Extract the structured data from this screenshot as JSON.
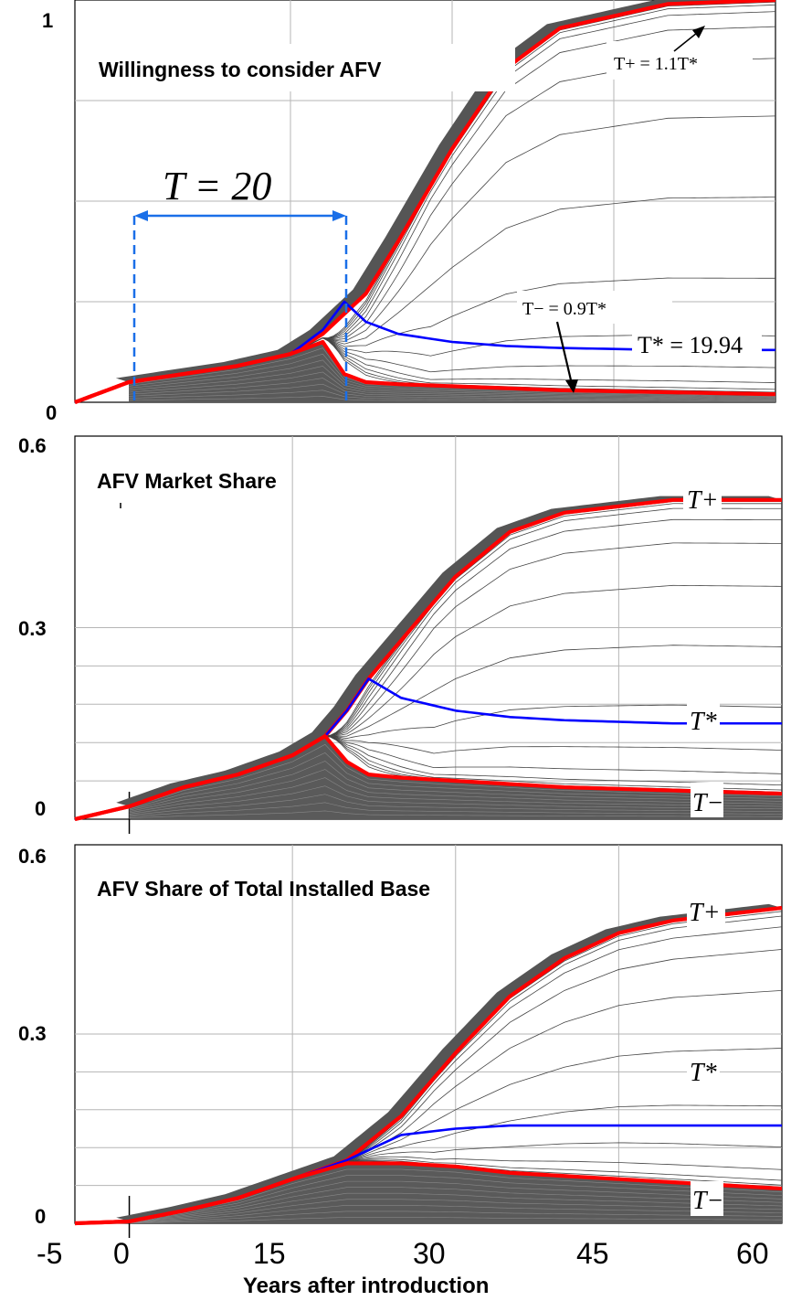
{
  "chart_data": [
    {
      "type": "line",
      "title": "Willingness to consider AFV",
      "xlim": [
        -5,
        60
      ],
      "ylim": [
        0,
        1
      ],
      "yticks": [
        "0",
        "1"
      ],
      "grid": true,
      "series": [
        {
          "name": "T+ = 1.1T*",
          "color": "#ff0000",
          "x": [
            -5,
            0,
            5,
            10,
            15,
            18,
            20,
            22,
            25,
            30,
            35,
            40,
            50,
            60
          ],
          "y": [
            0,
            0.05,
            0.07,
            0.09,
            0.12,
            0.17,
            0.22,
            0.27,
            0.4,
            0.63,
            0.83,
            0.93,
            0.99,
            1.0
          ]
        },
        {
          "name": "T* = 19.94",
          "color": "#0000ff",
          "x": [
            -5,
            0,
            5,
            10,
            15,
            18,
            20,
            22,
            25,
            30,
            35,
            40,
            50,
            60
          ],
          "y": [
            0,
            0.05,
            0.07,
            0.09,
            0.12,
            0.18,
            0.25,
            0.2,
            0.17,
            0.15,
            0.14,
            0.135,
            0.13,
            0.13
          ]
        },
        {
          "name": "T- = 0.9T*",
          "color": "#ff0000",
          "x": [
            -5,
            0,
            5,
            10,
            15,
            18,
            20,
            22,
            25,
            30,
            35,
            40,
            50,
            60
          ],
          "y": [
            0,
            0.05,
            0.07,
            0.09,
            0.12,
            0.15,
            0.07,
            0.05,
            0.045,
            0.04,
            0.035,
            0.03,
            0.025,
            0.02
          ]
        }
      ],
      "annotations": {
        "period": "T = 20",
        "t_plus": "T+ = 1.1T*",
        "t_minus": "T− = 0.9T*",
        "t_star": "T* = 19.94"
      }
    },
    {
      "type": "line",
      "title": "AFV Market Share",
      "xlim": [
        -5,
        60
      ],
      "ylim": [
        0,
        0.6
      ],
      "yticks": [
        "0",
        "0.3",
        "0.6"
      ],
      "grid": true,
      "series": [
        {
          "name": "T+",
          "color": "#ff0000",
          "x": [
            -5,
            0,
            5,
            10,
            15,
            18,
            20,
            22,
            25,
            30,
            35,
            40,
            50,
            60
          ],
          "y": [
            0,
            0.02,
            0.05,
            0.07,
            0.1,
            0.13,
            0.17,
            0.22,
            0.28,
            0.38,
            0.45,
            0.48,
            0.5,
            0.5
          ]
        },
        {
          "name": "T*",
          "color": "#0000ff",
          "x": [
            -5,
            0,
            5,
            10,
            15,
            18,
            20,
            22,
            25,
            30,
            35,
            40,
            50,
            60
          ],
          "y": [
            0,
            0.02,
            0.05,
            0.07,
            0.1,
            0.13,
            0.17,
            0.22,
            0.19,
            0.17,
            0.16,
            0.155,
            0.15,
            0.15
          ]
        },
        {
          "name": "T−",
          "color": "#ff0000",
          "x": [
            -5,
            0,
            5,
            10,
            15,
            18,
            20,
            22,
            25,
            30,
            35,
            40,
            50,
            60
          ],
          "y": [
            0,
            0.02,
            0.05,
            0.07,
            0.1,
            0.13,
            0.09,
            0.07,
            0.065,
            0.06,
            0.055,
            0.05,
            0.045,
            0.04
          ]
        }
      ],
      "annotations": {
        "t_plus": "T+",
        "t_star": "T*",
        "t_minus": "T−"
      }
    },
    {
      "type": "line",
      "title": "AFV Share of Total Installed Base",
      "xlim": [
        -5,
        60
      ],
      "ylim": [
        0,
        0.6
      ],
      "yticks": [
        "0",
        "0.3",
        "0.6"
      ],
      "xticks": [
        "-5",
        "0",
        "15",
        "30",
        "45",
        "60"
      ],
      "xlabel": "Years after introduction",
      "grid": true,
      "series": [
        {
          "name": "T+",
          "color": "#ff0000",
          "x": [
            -5,
            0,
            5,
            10,
            15,
            20,
            25,
            30,
            35,
            40,
            45,
            50,
            55,
            60
          ],
          "y": [
            0,
            0.003,
            0.02,
            0.04,
            0.07,
            0.1,
            0.17,
            0.27,
            0.36,
            0.42,
            0.46,
            0.48,
            0.49,
            0.5
          ]
        },
        {
          "name": "T*",
          "color": "#0000ff",
          "x": [
            -5,
            0,
            5,
            10,
            15,
            20,
            25,
            30,
            35,
            40,
            45,
            50,
            55,
            60
          ],
          "y": [
            0,
            0.003,
            0.02,
            0.04,
            0.07,
            0.1,
            0.14,
            0.15,
            0.155,
            0.155,
            0.155,
            0.155,
            0.155,
            0.155
          ]
        },
        {
          "name": "T−",
          "color": "#ff0000",
          "x": [
            -5,
            0,
            5,
            10,
            15,
            20,
            25,
            30,
            35,
            40,
            45,
            50,
            55,
            60
          ],
          "y": [
            0,
            0.003,
            0.02,
            0.04,
            0.07,
            0.095,
            0.095,
            0.09,
            0.08,
            0.075,
            0.07,
            0.065,
            0.06,
            0.055
          ]
        }
      ],
      "annotations": {
        "t_plus": "T+",
        "t_star": "T*",
        "t_minus": "T−"
      }
    }
  ]
}
